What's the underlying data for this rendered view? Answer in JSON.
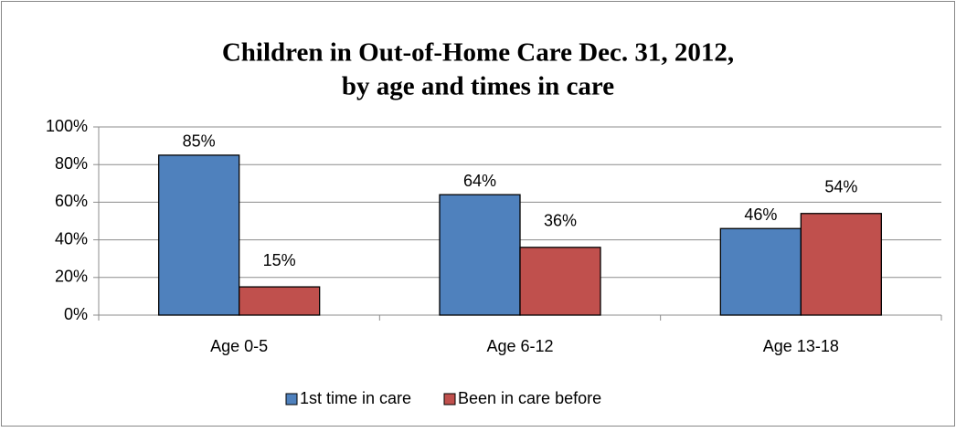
{
  "chart_data": {
    "type": "bar",
    "title": [
      "Children in Out-of-Home Care Dec. 31, 2012,",
      "by age and times in care"
    ],
    "categories": [
      "Age 0-5",
      "Age 6-12",
      "Age 13-18"
    ],
    "series": [
      {
        "name": "1st time in care",
        "color": "#4f81bd",
        "values": [
          85,
          64,
          46
        ],
        "value_labels": [
          "85%",
          "64%",
          "46%"
        ]
      },
      {
        "name": "Been in care before",
        "color": "#c0504d",
        "values": [
          15,
          36,
          54
        ],
        "value_labels": [
          "15%",
          "36%",
          "54%"
        ]
      }
    ],
    "ylim": [
      0,
      100
    ],
    "yticks": [
      {
        "value": 0,
        "label": "0%"
      },
      {
        "value": 20,
        "label": "20%"
      },
      {
        "value": 40,
        "label": "40%"
      },
      {
        "value": 60,
        "label": "60%"
      },
      {
        "value": 80,
        "label": "80%"
      },
      {
        "value": 100,
        "label": "100%"
      }
    ],
    "grid": true,
    "legend": "bottom"
  }
}
